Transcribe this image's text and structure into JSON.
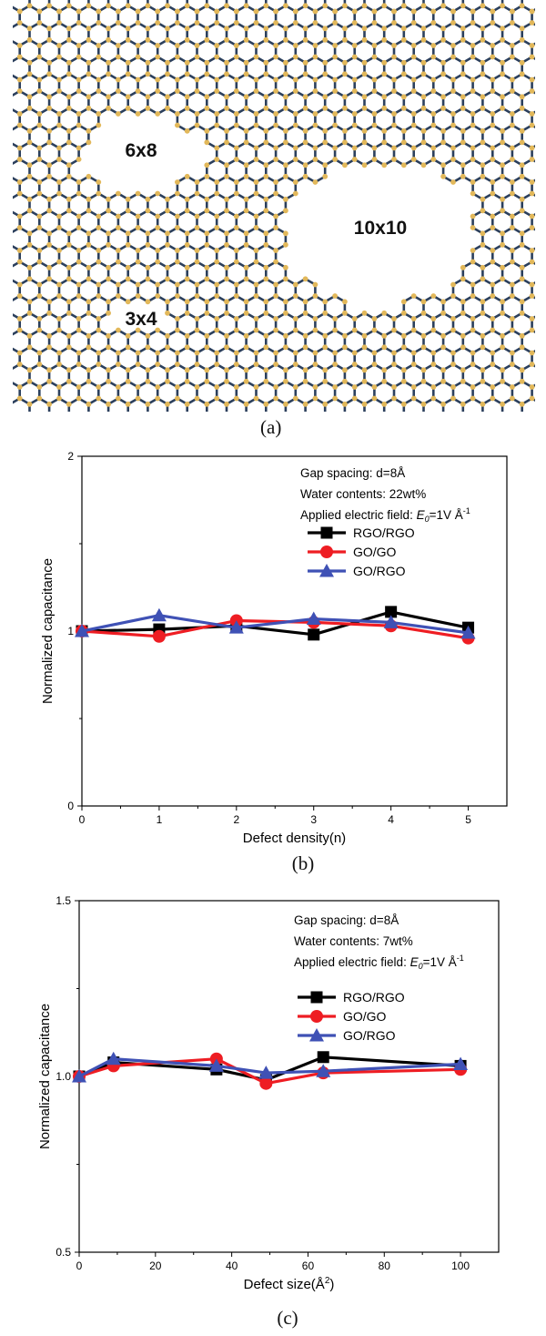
{
  "panel_a": {
    "defect_labels": [
      "6x8",
      "10x10",
      "3x4"
    ],
    "caption": "(a)",
    "colors": {
      "bond": "#2b3f5c",
      "atom": "#e2b85a",
      "background": "#ffffff"
    }
  },
  "chart_data": [
    {
      "type": "line",
      "panel_caption": "(b)",
      "xlabel": "Defect density(n)",
      "ylabel": "Normalized capacitance",
      "xlim": [
        0,
        5.5
      ],
      "ylim": [
        0,
        2
      ],
      "xticks": [
        "0",
        "1",
        "2",
        "3",
        "4",
        "5"
      ],
      "yticks": [
        "0",
        "1",
        "2"
      ],
      "x": [
        0,
        1,
        2,
        3,
        4,
        5
      ],
      "annotations": [
        "Gap spacing: d=8Å",
        "Water contents: 22wt%",
        "Applied electric field: "
      ],
      "field": {
        "symbol": "E",
        "subscript": "0",
        "value": "=1V Å",
        "exponent": "-1"
      },
      "legend_position": "top-right",
      "series": [
        {
          "name": "RGO/RGO",
          "color": "#000000",
          "marker": "square",
          "values": [
            1.0,
            1.01,
            1.03,
            0.98,
            1.11,
            1.02
          ]
        },
        {
          "name": "GO/GO",
          "color": "#ee1d23",
          "marker": "circle",
          "values": [
            1.0,
            0.97,
            1.06,
            1.05,
            1.03,
            0.96
          ]
        },
        {
          "name": "GO/RGO",
          "color": "#3f51b5",
          "marker": "triangle",
          "values": [
            1.0,
            1.09,
            1.02,
            1.07,
            1.05,
            0.99
          ]
        }
      ]
    },
    {
      "type": "line",
      "panel_caption": "(c)",
      "xlabel": "Defect size(Å",
      "xlabel_sup": "2",
      "xlabel_end": ")",
      "ylabel": "Normalized capacitance",
      "xlim": [
        0,
        110
      ],
      "ylim": [
        0.5,
        1.5
      ],
      "xticks": [
        "0",
        "20",
        "40",
        "60",
        "80",
        "100"
      ],
      "yticks": [
        "0.5",
        "1.0",
        "1.5"
      ],
      "x": [
        0,
        9,
        36,
        49,
        64,
        100
      ],
      "annotations": [
        "Gap spacing: d=8Å",
        "Water contents: 7wt%",
        "Applied electric field: "
      ],
      "field": {
        "symbol": "E",
        "subscript": "0",
        "value": "=1V Å",
        "exponent": "-1"
      },
      "legend_position": "top-right",
      "series": [
        {
          "name": "RGO/RGO",
          "color": "#000000",
          "marker": "square",
          "values": [
            1.0,
            1.04,
            1.02,
            0.99,
            1.055,
            1.03
          ]
        },
        {
          "name": "GO/GO",
          "color": "#ee1d23",
          "marker": "circle",
          "values": [
            1.0,
            1.03,
            1.05,
            0.98,
            1.01,
            1.02
          ]
        },
        {
          "name": "GO/RGO",
          "color": "#3f51b5",
          "marker": "triangle",
          "values": [
            1.0,
            1.05,
            1.03,
            1.01,
            1.015,
            1.035
          ]
        }
      ]
    }
  ]
}
